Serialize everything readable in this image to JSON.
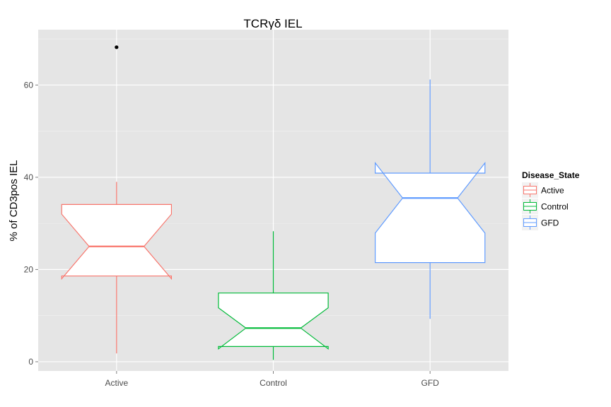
{
  "chart_data": {
    "type": "boxplot",
    "title": "TCRγδ IEL",
    "xlabel": "",
    "ylabel": "% of CD3pos IEL",
    "ylim": [
      -2,
      72
    ],
    "yticks": [
      0,
      20,
      40,
      60
    ],
    "categories": [
      "Active",
      "Control",
      "GFD"
    ],
    "notched": true,
    "grid": true,
    "background": "#e5e5e5",
    "legend": {
      "title": "Disease_State",
      "placement": "right",
      "entries": [
        "Active",
        "Control",
        "GFD"
      ]
    },
    "series": [
      {
        "name": "Active",
        "color": "#f8766d",
        "lower_whisker": 1.8,
        "q1": 18.6,
        "median": 25,
        "q3": 34.1,
        "upper_whisker": 39,
        "notch_lower": 18,
        "notch_upper": 32,
        "outliers": [
          68.2
        ]
      },
      {
        "name": "Control",
        "color": "#00ba38",
        "lower_whisker": 0.4,
        "q1": 3.3,
        "median": 7.3,
        "q3": 14.9,
        "upper_whisker": 28.3,
        "notch_lower": 2.8,
        "notch_upper": 11.7,
        "outliers": []
      },
      {
        "name": "GFD",
        "color": "#619cff",
        "lower_whisker": 9.3,
        "q1": 21.5,
        "median": 35.5,
        "q3": 40.9,
        "upper_whisker": 61.2,
        "notch_lower": 27.9,
        "notch_upper": 43.1,
        "outliers": []
      }
    ]
  }
}
